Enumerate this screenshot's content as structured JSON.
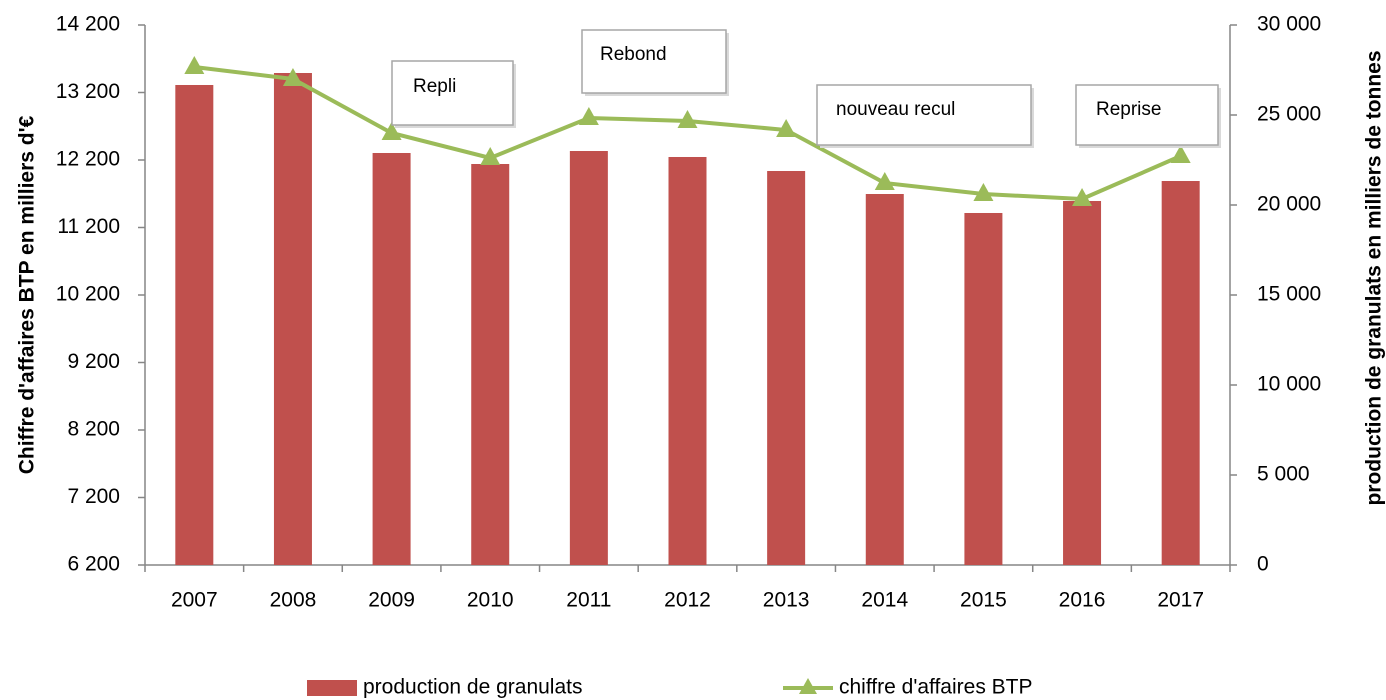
{
  "chart_data": {
    "type": "bar-line",
    "categories": [
      "2007",
      "2008",
      "2009",
      "2010",
      "2011",
      "2012",
      "2013",
      "2014",
      "2015",
      "2016",
      "2017"
    ],
    "series": [
      {
        "name": "production de granulats",
        "type": "bar",
        "color": "#c0504d",
        "axis": "y2",
        "values": [
          26667,
          27333,
          22889,
          22278,
          23000,
          22667,
          21889,
          20611,
          19556,
          20222,
          21333
        ]
      },
      {
        "name": "chiffre d'affaires BTP",
        "type": "line",
        "color": "#9bbb59",
        "axis": "y",
        "values": [
          13578,
          13400,
          12600,
          12230,
          12822,
          12778,
          12644,
          11859,
          11696,
          11622,
          12259
        ]
      }
    ],
    "ylabel": "Chiffre d'affaires BTP en milliers d'€",
    "y2label": "production de granulats en milliers de tonnes",
    "ylim": [
      6200,
      14200
    ],
    "yticks": [
      {
        "value": 6200,
        "label": "6 200"
      },
      {
        "value": 7200,
        "label": "7 200"
      },
      {
        "value": 8200,
        "label": "8 200"
      },
      {
        "value": 9200,
        "label": "9 200"
      },
      {
        "value": 10200,
        "label": "10 200"
      },
      {
        "value": 11200,
        "label": "11 200"
      },
      {
        "value": 12200,
        "label": "12 200"
      },
      {
        "value": 13200,
        "label": "13 200"
      },
      {
        "value": 14200,
        "label": "14 200"
      }
    ],
    "y2lim": [
      0,
      30000
    ],
    "y2ticks": [
      0,
      {
        "value": 5000,
        "label": "5 000"
      },
      {
        "value": 10000,
        "label": "10 000"
      },
      {
        "value": 15000,
        "label": "15 000"
      },
      {
        "value": 20000,
        "label": "20 000"
      },
      {
        "value": 25000,
        "label": "25 000"
      },
      {
        "value": 30000,
        "label": "30 000"
      }
    ],
    "annotations": [
      "Repli",
      "Rebond",
      "nouveau recul",
      "Reprise"
    ],
    "grid": false,
    "legend": "bottom"
  }
}
